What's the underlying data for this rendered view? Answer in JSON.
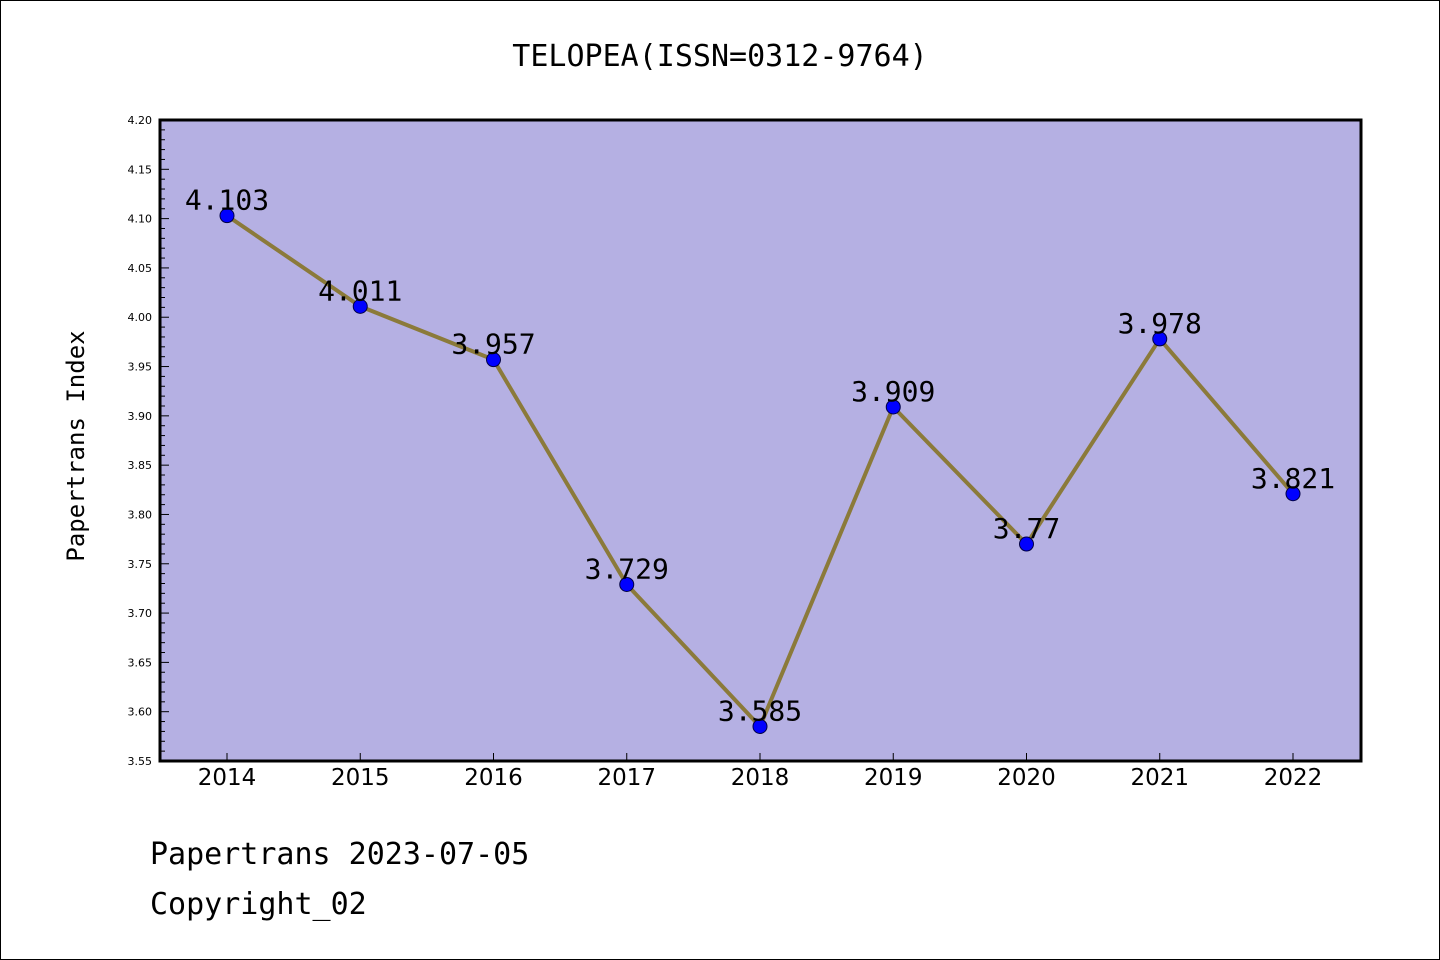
{
  "chart_data": {
    "type": "line",
    "title": "TELOPEA(ISSN=0312-9764)",
    "ylabel": "Papertrans Index",
    "xlabel": "",
    "categories": [
      "2014",
      "2015",
      "2016",
      "2017",
      "2018",
      "2019",
      "2020",
      "2021",
      "2022"
    ],
    "series": [
      {
        "values": [
          4.103,
          4.011,
          3.957,
          3.729,
          3.585,
          3.909,
          3.77,
          3.978,
          3.821
        ],
        "labels": [
          "4.103",
          "4.011",
          "3.957",
          "3.729",
          "3.585",
          "3.909",
          "3.77",
          "3.978",
          "3.821"
        ]
      }
    ],
    "ylim": [
      3.55,
      4.2
    ],
    "yticks": [
      "3.55",
      "3.60",
      "3.65",
      "3.70",
      "3.75",
      "3.80",
      "3.85",
      "3.90",
      "3.95",
      "4.00",
      "4.05",
      "4.10",
      "4.15",
      "4.20"
    ],
    "grid": false,
    "colors": {
      "plot_background": "#b5b0e3",
      "line": "#8b7a3a",
      "marker": "#0000ff"
    }
  },
  "footer": {
    "line1": "Papertrans 2023-07-05",
    "line2": "Copyright_02"
  }
}
